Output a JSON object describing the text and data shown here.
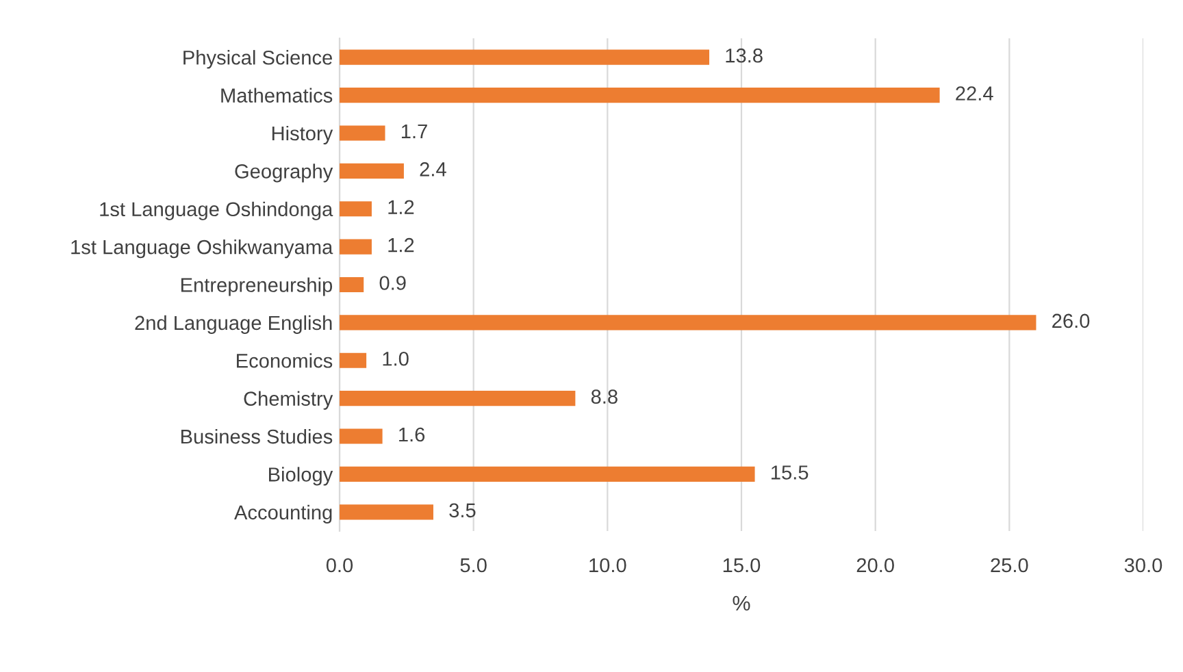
{
  "chart_data": {
    "type": "bar",
    "orientation": "horizontal",
    "xlabel": "%",
    "categories": [
      "Physical Science",
      "Mathematics",
      "History",
      "Geography",
      "1st Language Oshindonga",
      "1st Language Oshikwanyama",
      "Entrepreneurship",
      "2nd Language English",
      "Economics",
      "Chemistry",
      "Business Studies",
      "Biology",
      "Accounting"
    ],
    "values": [
      13.8,
      22.4,
      1.7,
      2.4,
      1.2,
      1.2,
      0.9,
      26.0,
      1.0,
      8.8,
      1.6,
      15.5,
      3.5
    ],
    "value_labels": [
      "13.8",
      "22.4",
      "1.7",
      "2.4",
      "1.2",
      "1.2",
      "0.9",
      "26.0",
      "1.0",
      "8.8",
      "1.6",
      "15.5",
      "3.5"
    ],
    "color": "#ed7d31",
    "xlim": [
      0,
      30
    ],
    "xticks": [
      {
        "value": 0,
        "label": "0.0"
      },
      {
        "value": 5,
        "label": "5.0"
      },
      {
        "value": 10,
        "label": "10.0"
      },
      {
        "value": 15,
        "label": "15.0"
      },
      {
        "value": 20,
        "label": "20.0"
      },
      {
        "value": 25,
        "label": "25.0"
      },
      {
        "value": 30,
        "label": "30.0"
      }
    ],
    "grid": "x",
    "legend": false
  }
}
